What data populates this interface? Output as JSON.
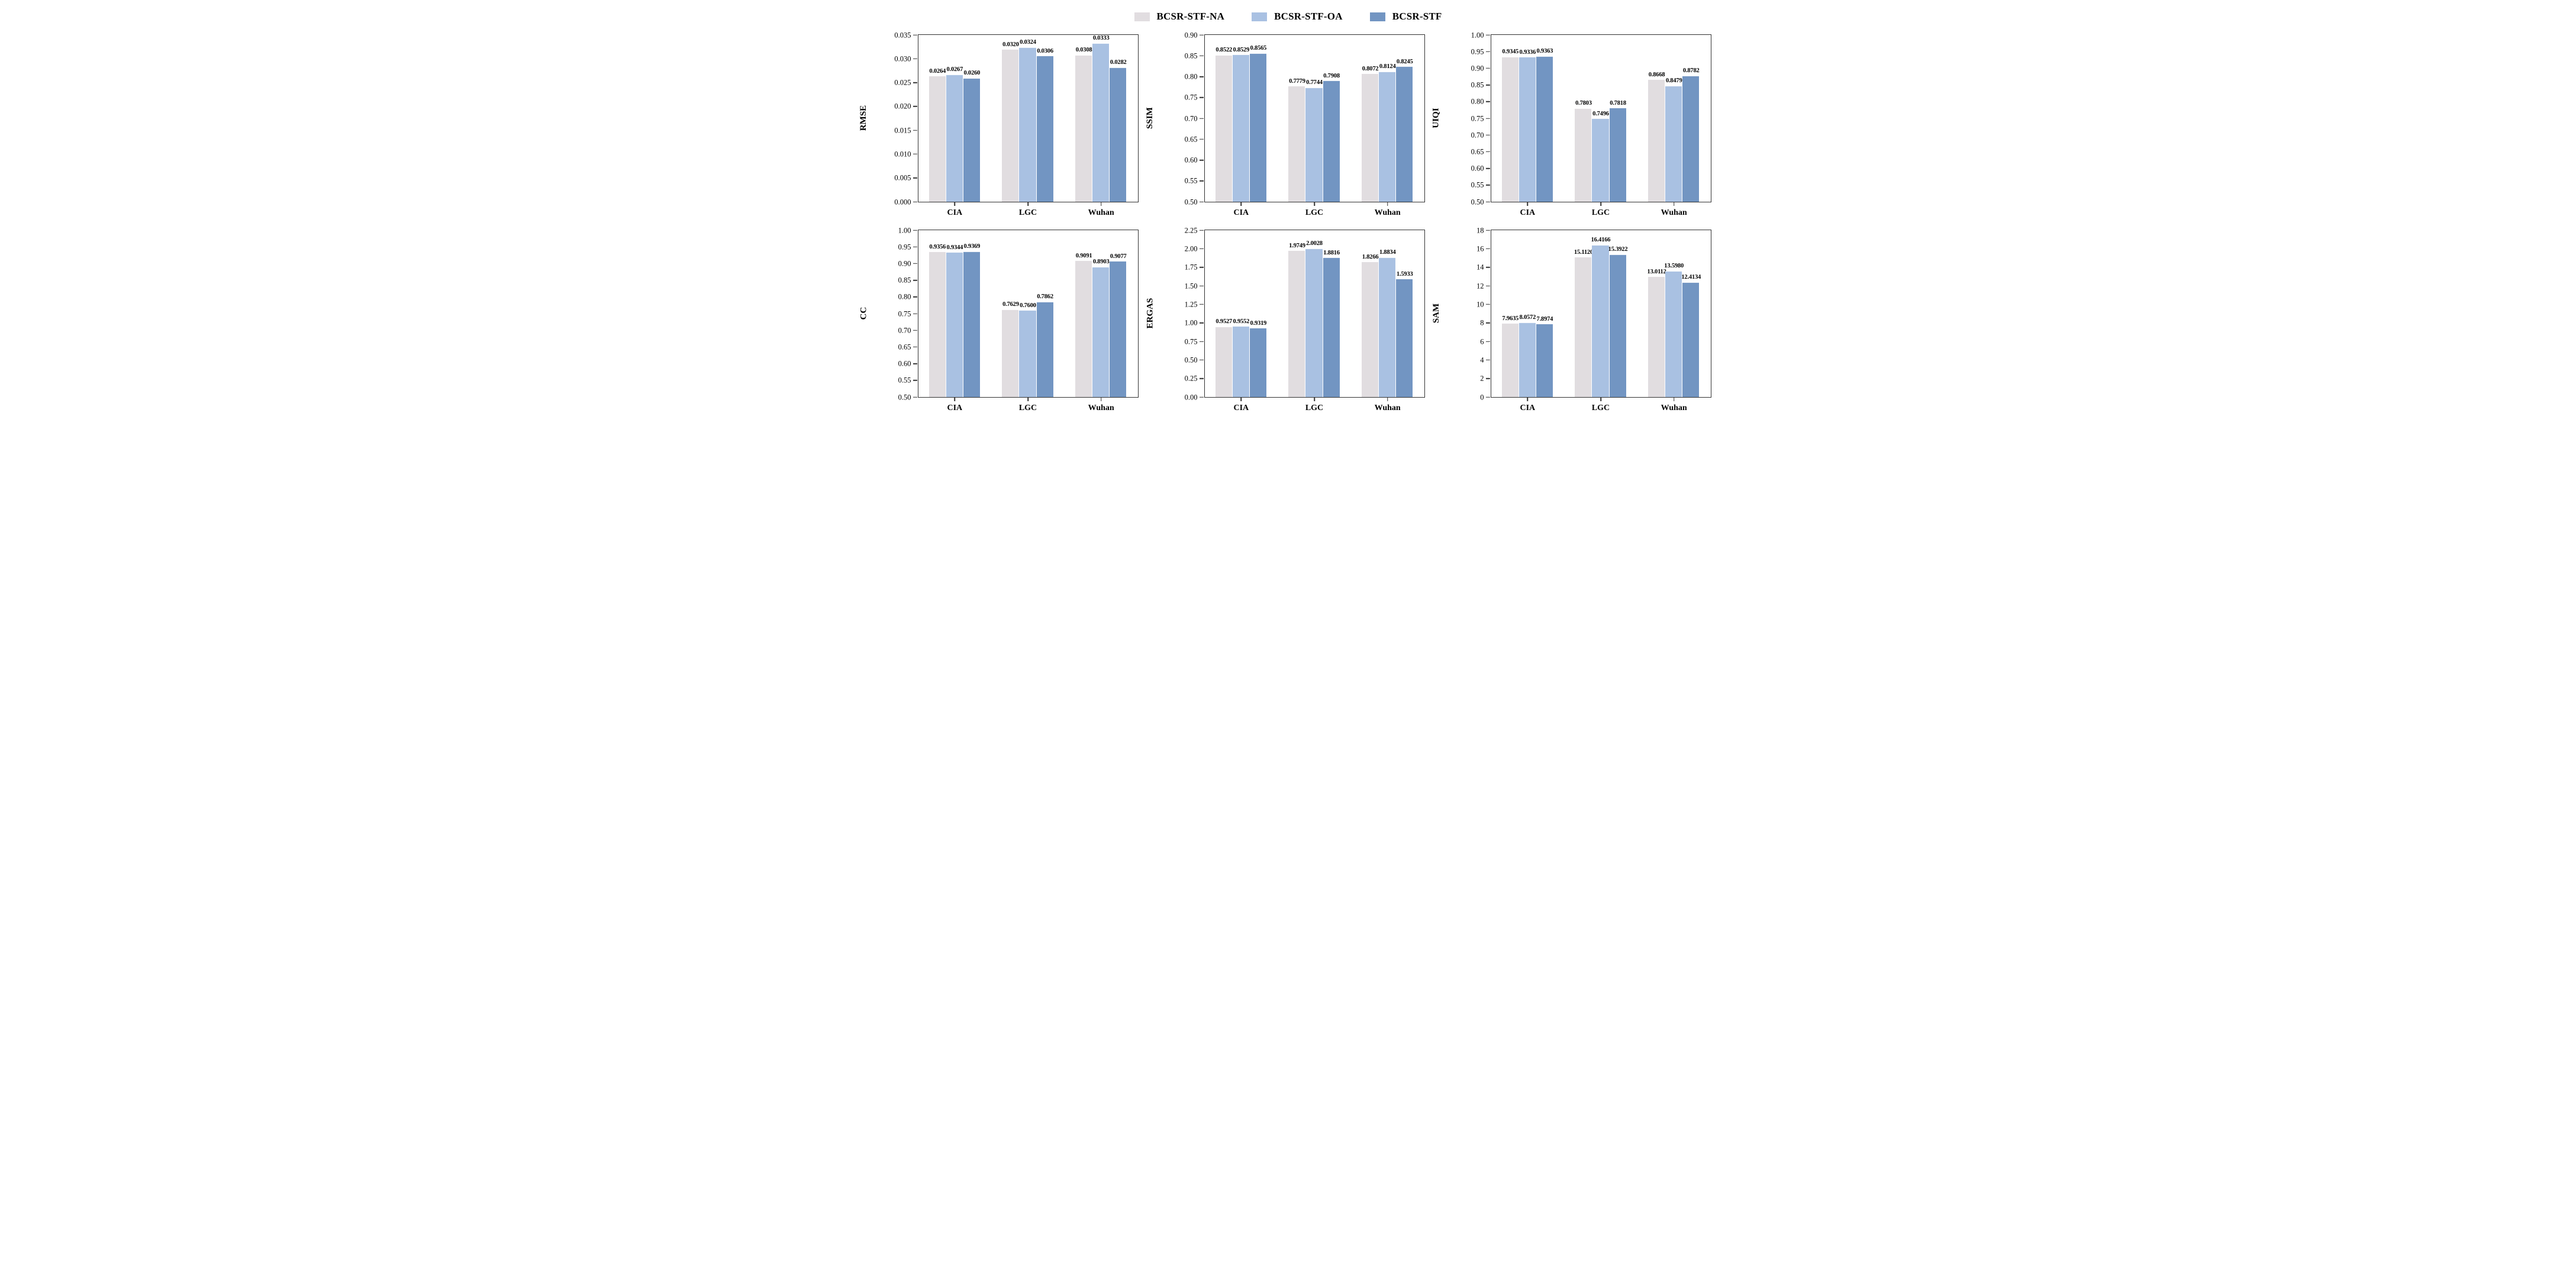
{
  "styles": {
    "axis_color": "#323232",
    "text_color": "#000000",
    "background": "#ffffff"
  },
  "legend": {
    "items": [
      {
        "label": "BCSR-STF-NA",
        "color": "#e1dde0"
      },
      {
        "label": "BCSR-STF-OA",
        "color": "#a9c1e2"
      },
      {
        "label": "BCSR-STF",
        "color": "#7295c2"
      }
    ]
  },
  "chart_data": [
    {
      "type": "bar",
      "ylabel": "RMSE",
      "categories": [
        "CIA",
        "LGC",
        "Wuhan"
      ],
      "series": [
        {
          "name": "BCSR-STF-NA",
          "values": [
            0.0264,
            0.032,
            0.0308
          ]
        },
        {
          "name": "BCSR-STF-OA",
          "values": [
            0.0267,
            0.0324,
            0.0333
          ]
        },
        {
          "name": "BCSR-STF",
          "values": [
            0.026,
            0.0306,
            0.0282
          ]
        }
      ],
      "ylim": [
        0,
        0.035
      ],
      "ytick_step": 0.005,
      "ytick_decimals": 3,
      "label_decimals": 4,
      "grid": false,
      "legend_position": "top-center"
    },
    {
      "type": "bar",
      "ylabel": "SSIM",
      "categories": [
        "CIA",
        "LGC",
        "Wuhan"
      ],
      "series": [
        {
          "name": "BCSR-STF-NA",
          "values": [
            0.8522,
            0.7779,
            0.8072
          ]
        },
        {
          "name": "BCSR-STF-OA",
          "values": [
            0.8529,
            0.7744,
            0.8124
          ]
        },
        {
          "name": "BCSR-STF",
          "values": [
            0.8565,
            0.7908,
            0.8245
          ]
        }
      ],
      "ylim": [
        0.5,
        0.9
      ],
      "ytick_step": 0.05,
      "ytick_decimals": 2,
      "label_decimals": 4,
      "grid": false,
      "legend_position": "top-center"
    },
    {
      "type": "bar",
      "ylabel": "UIQI",
      "categories": [
        "CIA",
        "LGC",
        "Wuhan"
      ],
      "series": [
        {
          "name": "BCSR-STF-NA",
          "values": [
            0.9345,
            0.7803,
            0.8668
          ]
        },
        {
          "name": "BCSR-STF-OA",
          "values": [
            0.9336,
            0.7496,
            0.8479
          ]
        },
        {
          "name": "BCSR-STF",
          "values": [
            0.9363,
            0.7818,
            0.8782
          ]
        }
      ],
      "ylim": [
        0.5,
        1.0
      ],
      "ytick_step": 0.05,
      "ytick_decimals": 2,
      "label_decimals": 4,
      "grid": false,
      "legend_position": "top-center"
    },
    {
      "type": "bar",
      "ylabel": "CC",
      "categories": [
        "CIA",
        "LGC",
        "Wuhan"
      ],
      "series": [
        {
          "name": "BCSR-STF-NA",
          "values": [
            0.9356,
            0.7629,
            0.9091
          ]
        },
        {
          "name": "BCSR-STF-OA",
          "values": [
            0.9344,
            0.76,
            0.8903
          ]
        },
        {
          "name": "BCSR-STF",
          "values": [
            0.9369,
            0.7862,
            0.9077
          ]
        }
      ],
      "ylim": [
        0.5,
        1.0
      ],
      "ytick_step": 0.05,
      "ytick_decimals": 2,
      "label_decimals": 4,
      "grid": false,
      "legend_position": "top-center"
    },
    {
      "type": "bar",
      "ylabel": "ERGAS",
      "categories": [
        "CIA",
        "LGC",
        "Wuhan"
      ],
      "series": [
        {
          "name": "BCSR-STF-NA",
          "values": [
            0.9527,
            1.9749,
            1.8266
          ]
        },
        {
          "name": "BCSR-STF-OA",
          "values": [
            0.9552,
            2.0028,
            1.8834
          ]
        },
        {
          "name": "BCSR-STF",
          "values": [
            0.9319,
            1.8816,
            1.5933
          ]
        }
      ],
      "ylim": [
        0.0,
        2.25
      ],
      "ytick_step": 0.25,
      "ytick_decimals": 2,
      "label_decimals": 4,
      "grid": false,
      "legend_position": "top-center"
    },
    {
      "type": "bar",
      "ylabel": "SAM",
      "categories": [
        "CIA",
        "LGC",
        "Wuhan"
      ],
      "series": [
        {
          "name": "BCSR-STF-NA",
          "values": [
            7.9635,
            15.112,
            13.0112
          ]
        },
        {
          "name": "BCSR-STF-OA",
          "values": [
            8.0572,
            16.4166,
            13.598
          ]
        },
        {
          "name": "BCSR-STF",
          "values": [
            7.8974,
            15.3922,
            12.4134
          ]
        }
      ],
      "ylim": [
        0,
        18
      ],
      "ytick_step": 2,
      "ytick_decimals": 0,
      "label_decimals": 4,
      "grid": false,
      "legend_position": "top-center"
    }
  ]
}
